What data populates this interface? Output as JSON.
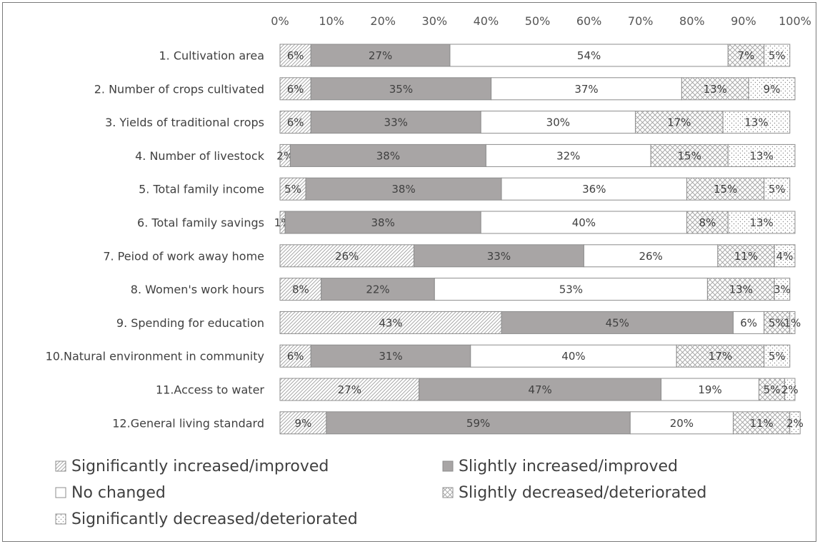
{
  "chart_data": {
    "type": "bar",
    "orientation": "horizontal",
    "stacked": "percent",
    "xlim": [
      0,
      100
    ],
    "x_ticks": [
      "0%",
      "10%",
      "20%",
      "30%",
      "40%",
      "50%",
      "60%",
      "70%",
      "80%",
      "90%",
      "100%"
    ],
    "categories": [
      "1. Cultivation area",
      "2. Number of crops cultivated",
      "3. Yields of traditional crops",
      "4. Number of livestock",
      "5. Total family income",
      "6. Total family savings",
      "7. Peiod of work away home",
      "8. Women's work hours",
      "9. Spending for education",
      "10.Natural environment in community",
      "11.Access to water",
      "12.General living standard"
    ],
    "series": [
      {
        "name": "Significantly increased/improved",
        "color": "#ffffff",
        "pattern": "diagonal",
        "values": [
          6,
          6,
          6,
          2,
          5,
          1,
          26,
          8,
          43,
          6,
          27,
          9
        ],
        "labels": [
          "6%",
          "6%",
          "6%",
          "2%",
          "5%",
          "1%",
          "26%",
          "8%",
          "43%",
          "6%",
          "27%",
          "9%"
        ]
      },
      {
        "name": "Slightly increased/improved",
        "color": "#a8a5a5",
        "pattern": "solid",
        "values": [
          27,
          35,
          33,
          38,
          38,
          38,
          33,
          22,
          45,
          31,
          47,
          59
        ],
        "labels": [
          "27%",
          "35%",
          "33%",
          "38%",
          "38%",
          "38%",
          "33%",
          "22%",
          "45%",
          "31%",
          "47%",
          "59%"
        ]
      },
      {
        "name": "No changed",
        "color": "#ffffff",
        "pattern": "none",
        "values": [
          54,
          37,
          30,
          32,
          36,
          40,
          26,
          53,
          6,
          40,
          19,
          20
        ],
        "labels": [
          "54%",
          "37%",
          "30%",
          "32%",
          "36%",
          "40%",
          "26%",
          "53%",
          "6%",
          "40%",
          "19%",
          "20%"
        ]
      },
      {
        "name": "Slightly decreased/deteriorated",
        "color": "#ffffff",
        "pattern": "crosshatch",
        "values": [
          7,
          13,
          17,
          15,
          15,
          8,
          11,
          13,
          5,
          17,
          5,
          11
        ],
        "labels": [
          "7%",
          "13%",
          "17%",
          "15%",
          "15%",
          "8%",
          "11%",
          "13%",
          "5%",
          "17%",
          "5%",
          "11%"
        ]
      },
      {
        "name": "Significantly decreased/deteriorated",
        "color": "#ffffff",
        "pattern": "dots",
        "values": [
          5,
          9,
          13,
          13,
          5,
          13,
          4,
          3,
          1,
          5,
          2,
          2
        ],
        "labels": [
          "5%",
          "9%",
          "13%",
          "13%",
          "5%",
          "13%",
          "4%",
          "3%",
          "1%",
          "5%",
          "2%",
          "2%"
        ]
      }
    ],
    "legend_position": "bottom",
    "grid": false
  }
}
